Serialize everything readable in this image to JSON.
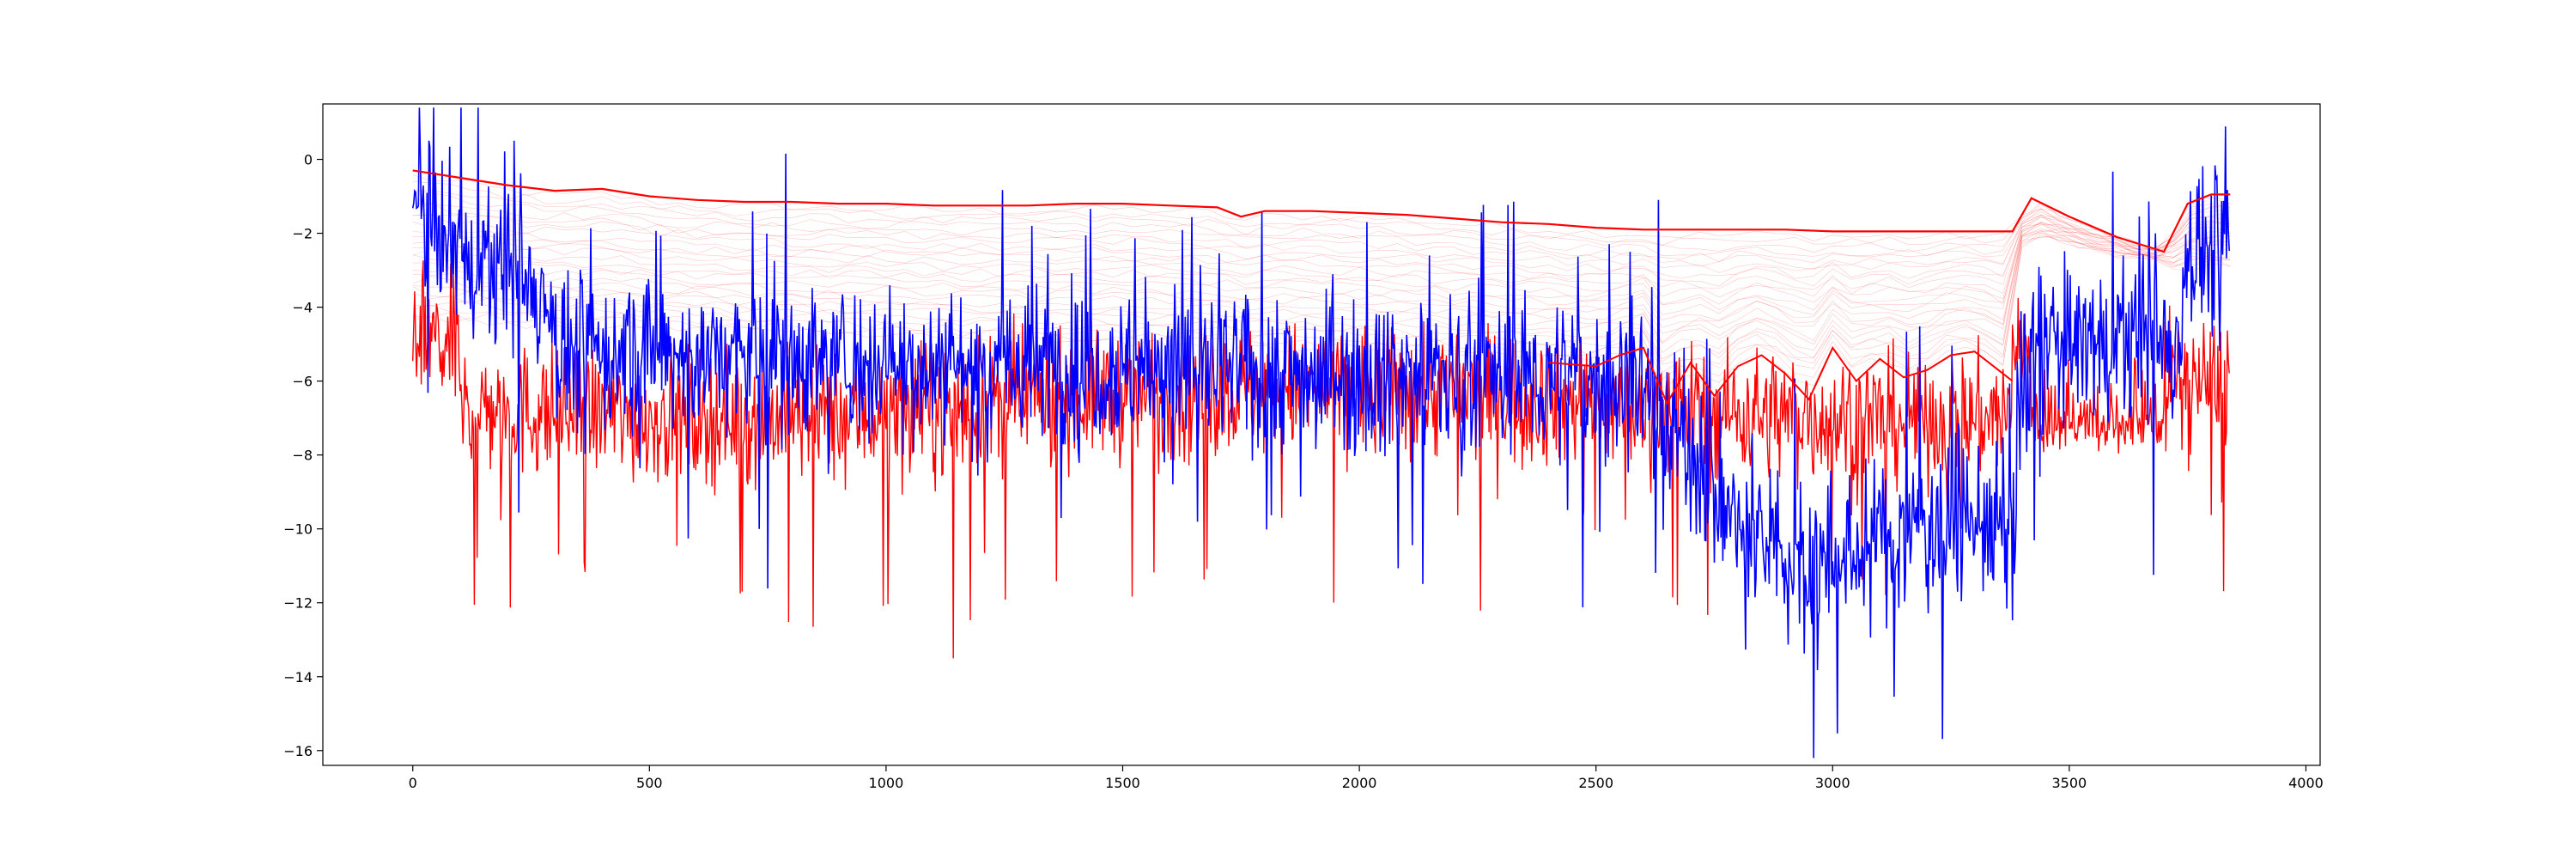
{
  "chart_data": {
    "type": "line",
    "title": "",
    "xlabel": "",
    "ylabel": "",
    "xlim": [
      -190,
      4030
    ],
    "ylim": [
      -16.4,
      1.5
    ],
    "grid": false,
    "legend": "none",
    "x_ticks": [
      0,
      500,
      1000,
      1500,
      2000,
      2500,
      3000,
      3500,
      4000
    ],
    "x_tick_labels": [
      "0",
      "500",
      "1000",
      "1500",
      "2000",
      "2500",
      "3000",
      "3500",
      "4000"
    ],
    "y_ticks": [
      0,
      -2,
      -4,
      -6,
      -8,
      -10,
      -12,
      -14,
      -16
    ],
    "y_tick_labels": [
      "0",
      "−2",
      "−4",
      "−6",
      "−8",
      "−10",
      "−12",
      "−14",
      "−16"
    ],
    "colors": {
      "blue": "#0000ff",
      "red": "#ff0000"
    },
    "series": [
      {
        "color": "#ff0000",
        "style": "upper-envelope",
        "x": [
          0,
          100,
          200,
          300,
          400,
          500,
          600,
          700,
          800,
          900,
          1000,
          1100,
          1200,
          1300,
          1400,
          1500,
          1600,
          1700,
          1750,
          1800,
          1900,
          2000,
          2100,
          2200,
          2300,
          2400,
          2500,
          2600,
          2700,
          2800,
          2900,
          3000,
          3100,
          3200,
          3300,
          3380,
          3420,
          3500,
          3600,
          3700,
          3750,
          3800,
          3840
        ],
        "values": [
          -0.3,
          -0.5,
          -0.7,
          -0.85,
          -0.8,
          -1.0,
          -1.1,
          -1.15,
          -1.15,
          -1.2,
          -1.2,
          -1.25,
          -1.25,
          -1.25,
          -1.2,
          -1.2,
          -1.25,
          -1.3,
          -1.55,
          -1.4,
          -1.4,
          -1.45,
          -1.5,
          -1.6,
          -1.7,
          -1.75,
          -1.85,
          -1.9,
          -1.9,
          -1.9,
          -1.9,
          -1.95,
          -1.95,
          -1.95,
          -1.95,
          -1.95,
          -1.05,
          -1.55,
          -2.1,
          -2.5,
          -1.2,
          -0.95,
          -0.95
        ]
      },
      {
        "color": "#ff0000",
        "style": "lower-envelope",
        "x": [
          2400,
          2500,
          2550,
          2600,
          2650,
          2700,
          2750,
          2800,
          2850,
          2900,
          2950,
          3000,
          3050,
          3100,
          3150,
          3200,
          3250,
          3300,
          3350,
          3380
        ],
        "values": [
          -5.5,
          -5.6,
          -5.3,
          -5.1,
          -6.6,
          -5.5,
          -6.4,
          -5.6,
          -5.3,
          -5.8,
          -6.5,
          -5.1,
          -6.0,
          -5.4,
          -5.9,
          -5.7,
          -5.3,
          -5.2,
          -5.7,
          -6.0
        ]
      },
      {
        "color": "#0000ff",
        "style": "signal",
        "n_points": 3840
      },
      {
        "color": "#ff0000",
        "style": "signal",
        "n_points": 3840
      }
    ]
  }
}
